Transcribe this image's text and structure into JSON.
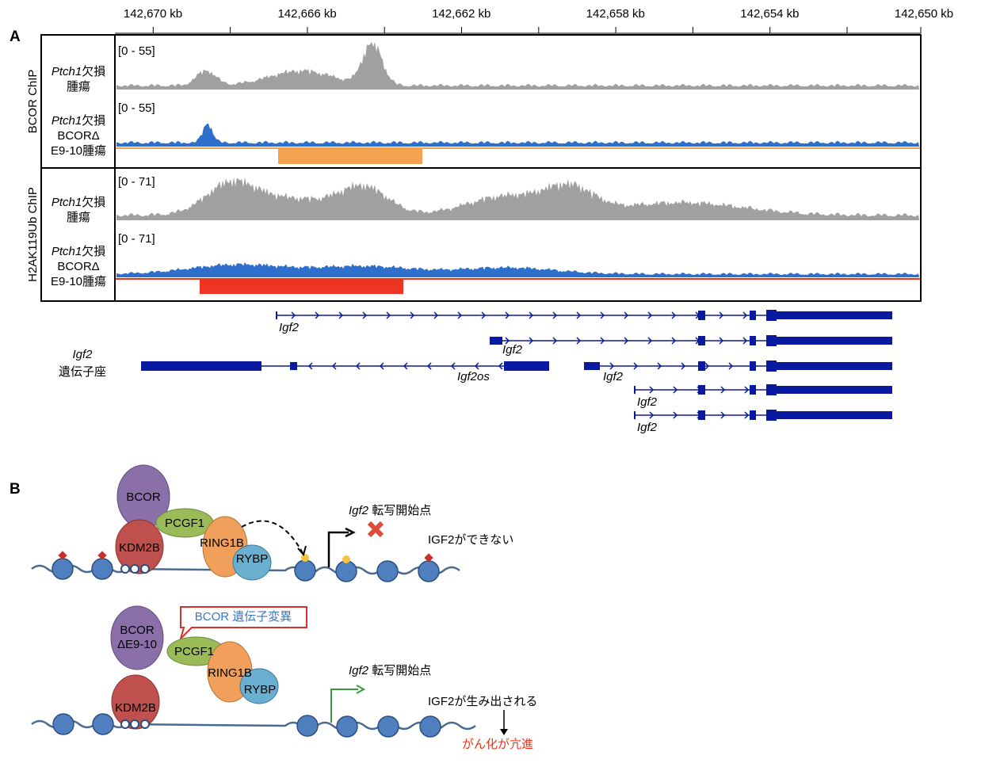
{
  "axis": {
    "ticks": [
      "142,670 kb",
      "142,666 kb",
      "142,662 kb",
      "142,658 kb",
      "142,654 kb",
      "142,650 kb"
    ]
  },
  "panel_a": {
    "label": "A",
    "groups": [
      "BCOR ChIP",
      "H2AK119Ub ChIP"
    ],
    "tracks": [
      {
        "gene": "Ptch1",
        "lines": [
          "欠損",
          "腫瘍"
        ],
        "range": "[0 - 55]"
      },
      {
        "gene": "Ptch1",
        "lines": [
          "欠損",
          "BCORΔ",
          "E9-10腫瘍"
        ],
        "range": "[0 - 55]"
      },
      {
        "gene": "Ptch1",
        "lines": [
          "欠損",
          "腫瘍"
        ],
        "range": "[0 - 71]"
      },
      {
        "gene": "Ptch1",
        "lines": [
          "欠損",
          "BCORΔ",
          "E9-10腫瘍"
        ],
        "range": "[0 - 71]"
      }
    ],
    "locus": {
      "gene": "Igf2",
      "label": "遺伝子座"
    },
    "transcripts": [
      "Igf2",
      "Igf2",
      "Igf2os",
      "Igf2",
      "Igf2",
      "Igf2"
    ]
  },
  "panel_b": {
    "label": "B",
    "top": {
      "bcor": "BCOR",
      "pcgf1": "PCGF1",
      "kdm2b": "KDM2B",
      "ring1b": "RING1B",
      "rybp": "RYBP",
      "tss_gene": "Igf2",
      "tss_label": "転写開始点",
      "outcome": "IGF2ができない"
    },
    "bottom": {
      "mutation": "BCOR 遺伝子変異",
      "bcor": [
        "BCOR",
        "ΔE9-10"
      ],
      "pcgf1": "PCGF1",
      "kdm2b": "KDM2B",
      "ring1b": "RING1B",
      "rybp": "RYBP",
      "tss_gene": "Igf2",
      "tss_label": "転写開始点",
      "outcome": "IGF2が生み出される",
      "result": "がん化が亢進"
    }
  }
}
